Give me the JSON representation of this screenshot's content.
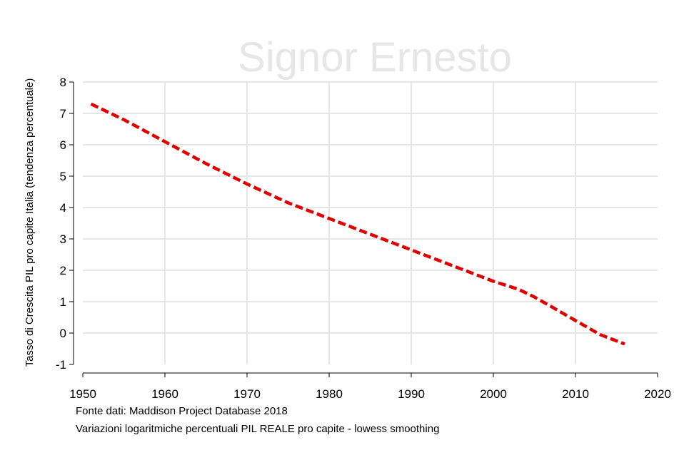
{
  "watermark": "Signor Ernesto",
  "notes": {
    "source": "Fonte dati: Maddison Project Database 2018",
    "description": "Variazioni logaritmiche percentuali PIL REALE pro capite - lowess smoothing"
  },
  "chart_data": {
    "type": "line",
    "title": "",
    "xlabel": "",
    "ylabel": "Tasso di Crescita PIL pro capite Italia (tendenza percentuale)",
    "xlim": [
      1950,
      2020
    ],
    "ylim": [
      -1,
      8
    ],
    "xticks": [
      1950,
      1960,
      1970,
      1980,
      1990,
      2000,
      2010,
      2020
    ],
    "yticks": [
      -1,
      0,
      1,
      2,
      3,
      4,
      5,
      6,
      7,
      8
    ],
    "grid": true,
    "line_style": "dashed",
    "colors": {
      "series": "#e00000",
      "negative_tick": "#e00000",
      "grid": "#e6e6e6"
    },
    "series": [
      {
        "x": [
          1951,
          1955,
          1960,
          1965,
          1970,
          1975,
          1980,
          1985,
          1990,
          1995,
          2000,
          2003,
          2005,
          2010,
          2013,
          2016
        ],
        "y": [
          7.3,
          6.8,
          6.1,
          5.4,
          4.75,
          4.15,
          3.65,
          3.15,
          2.65,
          2.15,
          1.65,
          1.4,
          1.15,
          0.4,
          -0.05,
          -0.35
        ]
      }
    ]
  }
}
